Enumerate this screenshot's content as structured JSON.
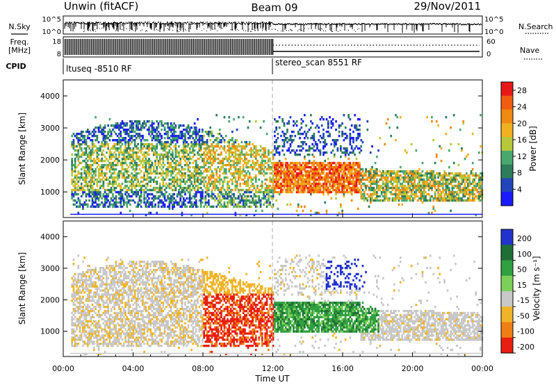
{
  "header": {
    "station": "Unwin (fitACF)",
    "beam": "Beam 09",
    "date": "29/Nov/2011"
  },
  "noise_panel": {
    "left_label": "N.Sky",
    "right_label": "N.Search",
    "left_ticks": [
      "10^5",
      "10^0"
    ],
    "right_ticks": [
      "10^5",
      "10^0"
    ]
  },
  "freq_panel": {
    "left_label_1": "Freq.",
    "left_label_2": "[MHz]",
    "right_label": "Nave",
    "left_ticks": [
      "18",
      "8"
    ],
    "right_ticks": [
      "60",
      "0"
    ]
  },
  "cpid": {
    "label": "CPID",
    "programs": [
      {
        "name": "ltuseq -8510 RF",
        "start_hour": 0,
        "end_hour": 12
      },
      {
        "name": "stereo_scan 8551 RF",
        "start_hour": 12,
        "end_hour": 24
      }
    ]
  },
  "time_axis": {
    "title": "Time UT",
    "ticks": [
      "00:00",
      "04:00",
      "08:00",
      "12:00",
      "16:00",
      "20:00",
      "00:00"
    ]
  },
  "chart_data": [
    {
      "type": "heatmap",
      "panel": "power",
      "xlabel": "Time UT",
      "ylabel": "Slant Range [km]",
      "xlim": [
        0,
        24
      ],
      "ylim": [
        200,
        4500
      ],
      "y_ticks": [
        1000,
        2000,
        3000,
        4000
      ],
      "colorbar": {
        "label": "Power [dB]",
        "ticks": [
          4,
          8,
          12,
          16,
          20,
          24,
          28
        ],
        "range": [
          0,
          30
        ],
        "colors": [
          "#1a1aff",
          "#2244bb",
          "#2e7d5a",
          "#4aa86e",
          "#b8c83a",
          "#f0b020",
          "#f08a10",
          "#f25c10",
          "#e81818"
        ]
      },
      "regions": [
        {
          "t": [
            0.5,
            12
          ],
          "range_km": [
            500,
            3200
          ],
          "level": "low-moderate (4-16 dB, vertical striations)"
        },
        {
          "t": [
            6,
            12
          ],
          "range_km": [
            1000,
            2600
          ],
          "level": "moderate (12-20 dB)"
        },
        {
          "t": [
            12,
            17
          ],
          "range_km": [
            900,
            1900
          ],
          "level": "high (20-30 dB)"
        },
        {
          "t": [
            17,
            24
          ],
          "range_km": [
            600,
            1700
          ],
          "level": "moderate (8-24 dB)"
        },
        {
          "t": [
            12,
            18
          ],
          "range_km": [
            2200,
            3300
          ],
          "level": "low (4-12 dB, patchy)"
        }
      ]
    },
    {
      "type": "heatmap",
      "panel": "velocity",
      "xlabel": "Time UT",
      "ylabel": "Slant Range [km]",
      "xlim": [
        0,
        24
      ],
      "ylim": [
        200,
        4500
      ],
      "y_ticks": [
        1000,
        2000,
        3000,
        4000
      ],
      "colorbar": {
        "label": "Velocity [m s⁻¹]",
        "ticks": [
          200,
          100,
          50,
          15,
          -15,
          -50,
          -100,
          -200
        ],
        "range": [
          -250,
          250
        ],
        "colors": [
          "#2233cc",
          "#1f6e36",
          "#30a040",
          "#7cd05a",
          "#c8c8c8",
          "#f0b428",
          "#f07e14",
          "#e81e10"
        ]
      },
      "regions": [
        {
          "t": [
            0.5,
            8
          ],
          "range_km": [
            500,
            3000
          ],
          "level": "near zero to -50 m/s (grey/orange)"
        },
        {
          "t": [
            8,
            12
          ],
          "range_km": [
            700,
            2200
          ],
          "level": "-100 to -250 m/s (red)"
        },
        {
          "t": [
            12,
            18
          ],
          "range_km": [
            900,
            1900
          ],
          "level": "+15 to +100 m/s (green)"
        },
        {
          "t": [
            15,
            17.5
          ],
          "range_km": [
            2300,
            3300
          ],
          "level": "+200 m/s (blue)"
        },
        {
          "t": [
            17,
            24
          ],
          "range_km": [
            600,
            1700
          ],
          "level": "near zero (grey)"
        }
      ]
    }
  ]
}
